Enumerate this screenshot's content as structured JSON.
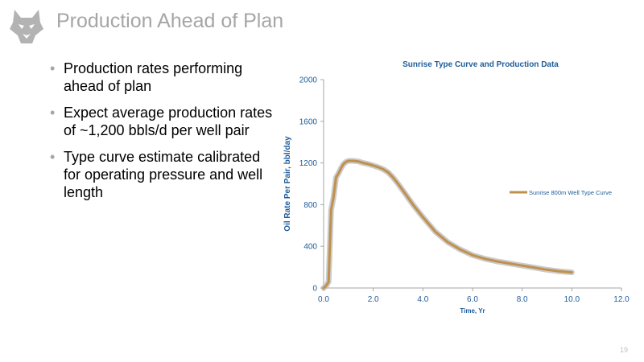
{
  "slide": {
    "title": "Production Ahead of Plan",
    "bullets": [
      "Production rates performing ahead of plan",
      "Expect average production rates of ~1,200 bbls/d per well pair",
      "Type curve estimate calibrated for operating pressure and well length"
    ],
    "page_number": "19",
    "logo_icon": "husky-head-icon"
  },
  "colors": {
    "title": "#a6a6a6",
    "chart_title": "#1f5c99",
    "axis_text": "#1f5c99",
    "type_curve": "#c0904d",
    "type_curve_shadow": "#b9b9b9"
  },
  "chart_data": {
    "type": "line",
    "title": "Sunrise Type Curve and Production Data",
    "xlabel": "Time, Yr",
    "ylabel": "Oil Rate Per Pair, bbl/day",
    "xlim": [
      0,
      12
    ],
    "ylim": [
      0,
      2000
    ],
    "xticks": [
      0,
      2,
      4,
      6,
      8,
      10,
      12
    ],
    "xtick_labels": [
      "0.0",
      "2.0",
      "4.0",
      "6.0",
      "8.0",
      "10.0",
      "12.0"
    ],
    "yticks": [
      0,
      400,
      800,
      1200,
      1600,
      2000
    ],
    "ytick_labels": [
      "0",
      "400",
      "800",
      "1200",
      "1600",
      "2000"
    ],
    "grid": false,
    "legend_position": "right",
    "series": [
      {
        "name": "Sunrise 800m Well Type Curve",
        "x": [
          0.0,
          0.1,
          0.2,
          0.3,
          0.4,
          0.5,
          0.6,
          0.7,
          0.8,
          0.9,
          1.0,
          1.2,
          1.4,
          1.6,
          1.8,
          2.0,
          2.2,
          2.4,
          2.6,
          2.8,
          3.0,
          3.3,
          3.6,
          4.0,
          4.5,
          5.0,
          5.5,
          6.0,
          6.5,
          7.0,
          7.5,
          8.0,
          8.5,
          9.0,
          9.5,
          10.0
        ],
        "y": [
          0,
          20,
          60,
          750,
          870,
          1060,
          1100,
          1150,
          1190,
          1210,
          1220,
          1220,
          1215,
          1200,
          1190,
          1175,
          1160,
          1140,
          1110,
          1060,
          1000,
          900,
          800,
          680,
          540,
          440,
          370,
          315,
          280,
          255,
          235,
          215,
          195,
          175,
          160,
          150
        ]
      }
    ]
  }
}
